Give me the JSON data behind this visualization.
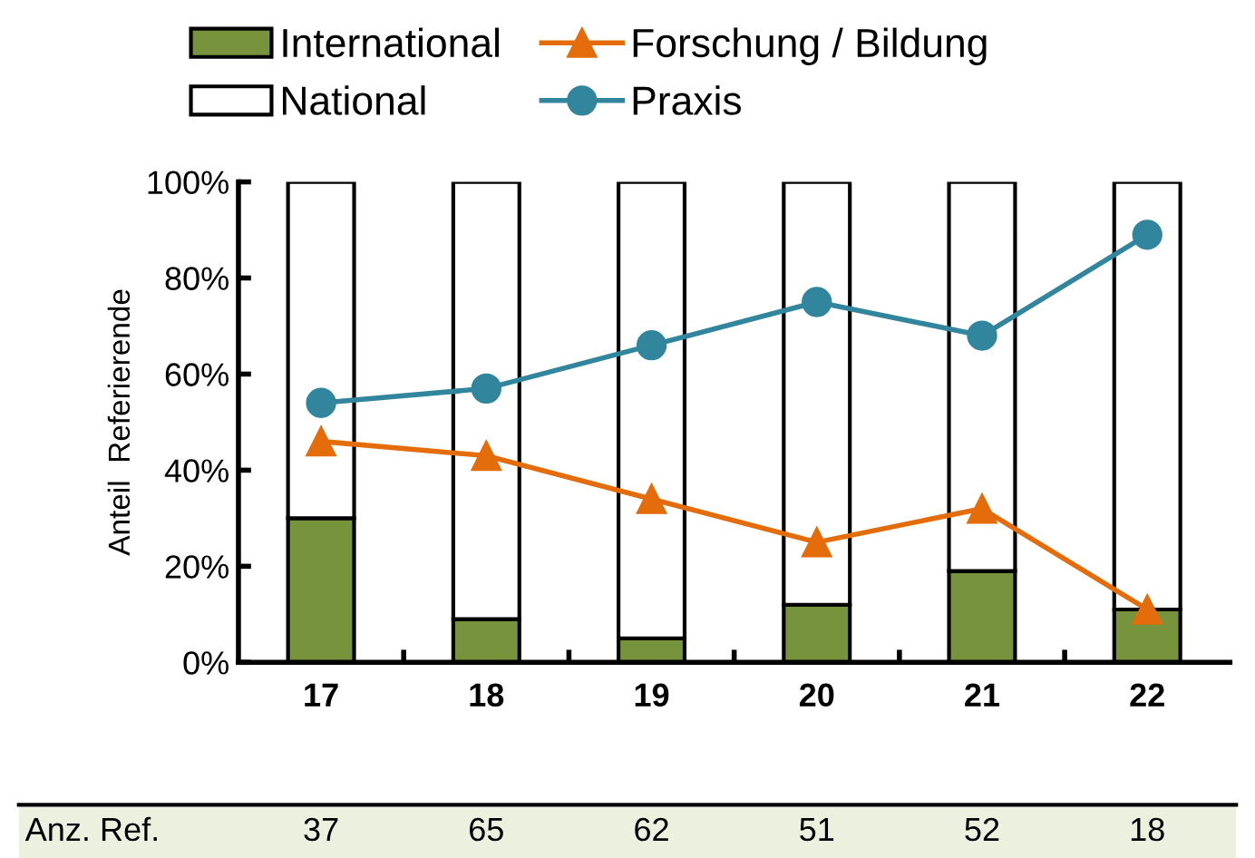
{
  "chart_data": {
    "type": "bar",
    "stacked": true,
    "ylabel": "Anteil  Referierende",
    "categories": [
      "17",
      "18",
      "19",
      "20",
      "21",
      "22"
    ],
    "series": [
      {
        "name": "International",
        "color": "#77933c",
        "values": [
          30,
          9,
          5,
          12,
          19,
          11
        ]
      },
      {
        "name": "National",
        "color": "#ffffff",
        "values": [
          70,
          91,
          95,
          88,
          81,
          89
        ]
      },
      {
        "name": "Forschung / Bildung",
        "type": "line",
        "color": "#e46c0a",
        "marker": "triangle",
        "values": [
          46,
          43,
          34,
          25,
          32,
          11
        ]
      },
      {
        "name": "Praxis",
        "type": "line",
        "color": "#31859c",
        "marker": "circle",
        "values": [
          54,
          57,
          66,
          75,
          68,
          89
        ]
      }
    ],
    "ylim": [
      0,
      100
    ],
    "yticks": [
      {
        "value": 0,
        "label": "0%"
      },
      {
        "value": 20,
        "label": "20%"
      },
      {
        "value": 40,
        "label": "40%"
      },
      {
        "value": 60,
        "label": "60%"
      },
      {
        "value": 80,
        "label": "80%"
      },
      {
        "value": 100,
        "label": "100%"
      }
    ],
    "grid": false,
    "legend": "top",
    "annotations": [
      "Anz. Ref.",
      "37",
      "65",
      "62",
      "51",
      "52",
      "18"
    ]
  }
}
